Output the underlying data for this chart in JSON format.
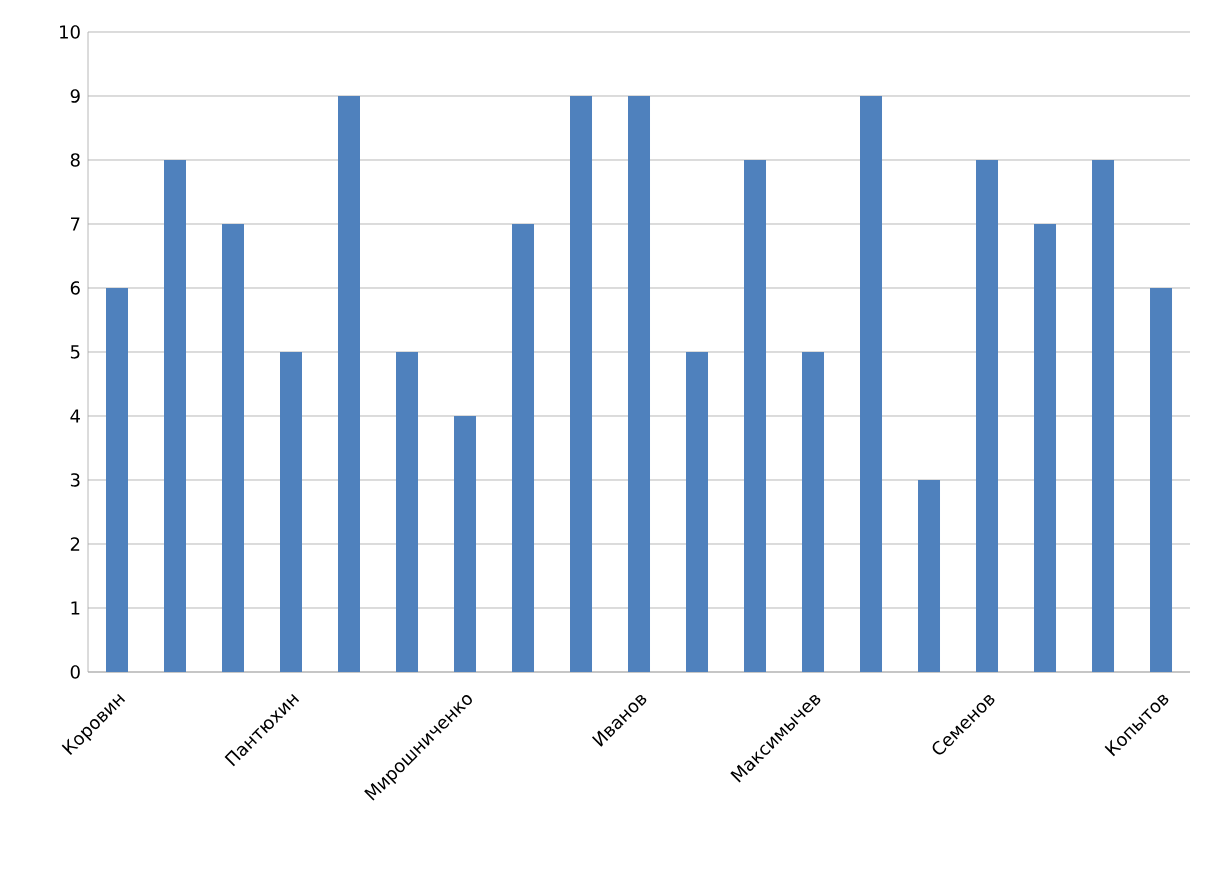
{
  "chart_data": {
    "type": "bar",
    "categories": [
      "Коровин",
      null,
      null,
      "Пантюхин",
      null,
      null,
      "Мирошниченко",
      null,
      null,
      "Иванов",
      null,
      null,
      "Максимычев",
      null,
      null,
      "Семенов",
      null,
      null,
      "Копытов"
    ],
    "values": [
      6,
      8,
      7,
      5,
      9,
      5,
      4,
      7,
      9,
      9,
      5,
      8,
      5,
      9,
      3,
      8,
      7,
      8,
      6
    ],
    "color": "#4f81bd",
    "ylim": [
      0,
      10
    ],
    "yticks": [
      0,
      1,
      2,
      3,
      4,
      5,
      6,
      7,
      8,
      9,
      10
    ],
    "grid": "y"
  }
}
